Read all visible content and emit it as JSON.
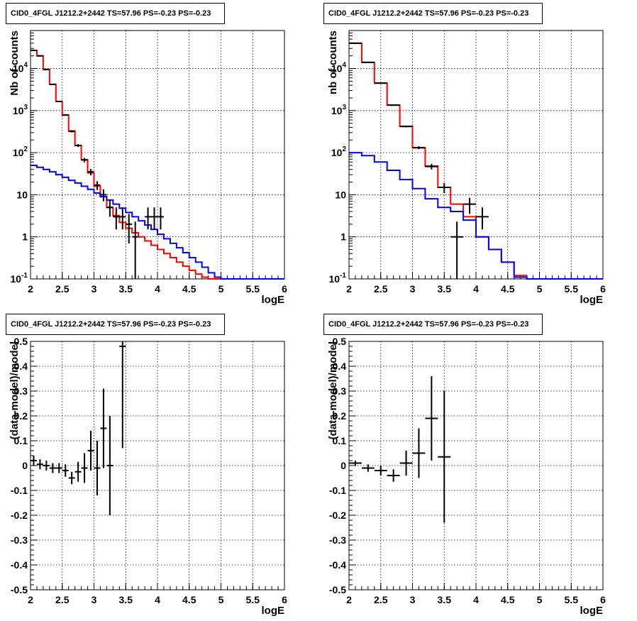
{
  "chart_data": [
    {
      "type": "step-histogram",
      "title": "CID0_4FGL J1212.2+2442 TS=57.96 PS=-0.23 PS=-0.23",
      "xlabel": "logE",
      "ylabel": "Nb of counts",
      "xlim": [
        2,
        6
      ],
      "ylim": [
        0.1,
        80000
      ],
      "yscale": "log",
      "grid": true,
      "xticks": [
        "2",
        "2.5",
        "3",
        "3.5",
        "4",
        "4.5",
        "5",
        "5.5",
        "6"
      ],
      "yticks": [
        "10^-1",
        "1",
        "10",
        "10^2",
        "10^3",
        "10^4"
      ],
      "bin_edges": [
        2,
        2.1,
        2.2,
        2.3,
        2.4,
        2.5,
        2.6,
        2.7,
        2.8,
        2.9,
        3,
        3.1,
        3.2,
        3.3,
        3.4,
        3.5,
        3.6,
        3.7,
        3.8,
        3.9,
        4,
        4.1,
        4.2,
        4.3,
        4.4,
        4.5,
        4.6,
        4.7,
        4.8,
        4.9,
        5,
        5.1,
        5.2,
        5.3,
        5.4,
        5.5,
        5.6,
        5.7,
        5.8,
        5.9,
        6
      ],
      "series": [
        {
          "color": "#ff0000",
          "values": [
            27000,
            20000,
            9500,
            4200,
            1650,
            780,
            330,
            148,
            68,
            33,
            16,
            9,
            5,
            3.2,
            2.2,
            1.6,
            1.25,
            1.0,
            0.8,
            0.63,
            0.5,
            0.4,
            0.32,
            0.25,
            0.2,
            0.16,
            0.13,
            0.11,
            0.1,
            0.1,
            0.1,
            0.1,
            0.1,
            0.1,
            0.1,
            0.1,
            0.1,
            0.1,
            0.1,
            0.1
          ]
        },
        {
          "color": "#0000ff",
          "values": [
            50,
            45,
            40,
            35,
            30,
            26,
            22,
            19,
            16,
            13.5,
            11,
            9,
            7.5,
            6,
            4.8,
            3.8,
            3,
            2.4,
            1.9,
            1.5,
            1.15,
            0.9,
            0.7,
            0.55,
            0.42,
            0.32,
            0.25,
            0.19,
            0.14,
            0.11,
            0.1,
            0.1,
            0.1,
            0.1,
            0.1,
            0.1,
            0.1,
            0.1,
            0.1,
            0.1
          ]
        }
      ],
      "data_points": [
        {
          "x": 2.05,
          "y": 27000,
          "ylo": 26700,
          "yhi": 27300
        },
        {
          "x": 2.15,
          "y": 20000,
          "ylo": 19700,
          "yhi": 20300
        },
        {
          "x": 2.25,
          "y": 9500,
          "ylo": 9300,
          "yhi": 9700
        },
        {
          "x": 2.35,
          "y": 4200,
          "ylo": 4100,
          "yhi": 4300
        },
        {
          "x": 2.45,
          "y": 1650,
          "ylo": 1610,
          "yhi": 1690
        },
        {
          "x": 2.55,
          "y": 790,
          "ylo": 760,
          "yhi": 820
        },
        {
          "x": 2.65,
          "y": 320,
          "ylo": 302,
          "yhi": 338
        },
        {
          "x": 2.75,
          "y": 148,
          "ylo": 136,
          "yhi": 160
        },
        {
          "x": 2.85,
          "y": 67,
          "ylo": 59,
          "yhi": 75
        },
        {
          "x": 2.95,
          "y": 35,
          "ylo": 29,
          "yhi": 41
        },
        {
          "x": 3.05,
          "y": 17,
          "ylo": 13,
          "yhi": 21
        },
        {
          "x": 3.15,
          "y": 10,
          "ylo": 7,
          "yhi": 13.5
        },
        {
          "x": 3.25,
          "y": 5,
          "ylo": 3,
          "yhi": 7.5
        },
        {
          "x": 3.35,
          "y": 3,
          "ylo": 1.5,
          "yhi": 5
        },
        {
          "x": 3.45,
          "y": 3,
          "ylo": 1.5,
          "yhi": 5
        },
        {
          "x": 3.55,
          "y": 2,
          "ylo": 0.7,
          "yhi": 3.5
        },
        {
          "x": 3.65,
          "y": 1,
          "ylo": 0.1,
          "yhi": 2.3
        },
        {
          "x": 3.85,
          "y": 3,
          "ylo": 1.5,
          "yhi": 5
        },
        {
          "x": 3.95,
          "y": 3,
          "ylo": 1.5,
          "yhi": 5
        },
        {
          "x": 4.05,
          "y": 3,
          "ylo": 1.5,
          "yhi": 5
        }
      ]
    },
    {
      "type": "step-histogram",
      "title": "CID0_4FGL J1212.2+2442 TS=57.96 PS=-0.23 PS=-0.23",
      "xlabel": "logE",
      "ylabel": "nb of counts",
      "xlim": [
        2,
        6
      ],
      "ylim": [
        0.1,
        80000
      ],
      "yscale": "log",
      "grid": true,
      "xticks": [
        "2",
        "2.5",
        "3",
        "3.5",
        "4",
        "4.5",
        "5",
        "5.5",
        "6"
      ],
      "yticks": [
        "10^-1",
        "1",
        "10",
        "10^2",
        "10^3",
        "10^4"
      ],
      "bin_edges": [
        2,
        2.2,
        2.4,
        2.6,
        2.8,
        3,
        3.2,
        3.4,
        3.6,
        3.8,
        4,
        4.2,
        4.4,
        4.6,
        4.8,
        5,
        5.2,
        5.4,
        5.6,
        5.8,
        6
      ],
      "series": [
        {
          "color": "#ff0000",
          "values": [
            40000,
            14000,
            4500,
            1350,
            420,
            130,
            48,
            15,
            6,
            3,
            1,
            0.5,
            0.25,
            0.12,
            0.1,
            0.1,
            0.1,
            0.1,
            0.1,
            0.1
          ]
        },
        {
          "color": "#0000ff",
          "values": [
            100,
            85,
            60,
            38,
            23,
            14,
            8,
            5,
            4,
            2.5,
            1,
            0.5,
            0.25,
            0.11,
            0.1,
            0.1,
            0.1,
            0.1,
            0.1,
            0.1
          ]
        }
      ],
      "data_points": [
        {
          "x": 2.1,
          "y": 40000,
          "ylo": 39700,
          "yhi": 40300
        },
        {
          "x": 2.3,
          "y": 14000,
          "ylo": 13800,
          "yhi": 14200
        },
        {
          "x": 2.5,
          "y": 4500,
          "ylo": 4400,
          "yhi": 4600
        },
        {
          "x": 2.7,
          "y": 1350,
          "ylo": 1310,
          "yhi": 1390
        },
        {
          "x": 2.9,
          "y": 420,
          "ylo": 400,
          "yhi": 440
        },
        {
          "x": 3.1,
          "y": 132,
          "ylo": 121,
          "yhi": 143
        },
        {
          "x": 3.3,
          "y": 47,
          "ylo": 40,
          "yhi": 54
        },
        {
          "x": 3.5,
          "y": 15,
          "ylo": 11,
          "yhi": 19
        },
        {
          "x": 3.7,
          "y": 1,
          "ylo": 0.1,
          "yhi": 2.3
        },
        {
          "x": 3.9,
          "y": 6,
          "ylo": 3.5,
          "yhi": 8.5
        },
        {
          "x": 4.1,
          "y": 3,
          "ylo": 1.5,
          "yhi": 5
        }
      ]
    },
    {
      "type": "error-bar",
      "title": "CID0_4FGL J1212.2+2442 TS=57.96 PS=-0.23 PS=-0.23",
      "xlabel": "logE",
      "ylabel": "(data-model)/model",
      "xlim": [
        2,
        6
      ],
      "ylim": [
        -0.5,
        0.5
      ],
      "grid": true,
      "xticks": [
        "2",
        "2.5",
        "3",
        "3.5",
        "4",
        "4.5",
        "5",
        "5.5",
        "6"
      ],
      "yticks": [
        "-0.5",
        "-0.4",
        "-0.3",
        "-0.2",
        "-0.1",
        "0",
        "0.1",
        "0.2",
        "0.3",
        "0.4",
        "0.5"
      ],
      "bin_width": 0.1,
      "data_points": [
        {
          "x": 2.05,
          "y": 0.02,
          "yerr": 0.02
        },
        {
          "x": 2.15,
          "y": 0.005,
          "yerr": 0.02
        },
        {
          "x": 2.25,
          "y": 0.0,
          "yerr": 0.02
        },
        {
          "x": 2.35,
          "y": -0.01,
          "yerr": 0.02
        },
        {
          "x": 2.45,
          "y": -0.01,
          "yerr": 0.02
        },
        {
          "x": 2.55,
          "y": -0.02,
          "yerr": 0.025
        },
        {
          "x": 2.65,
          "y": -0.05,
          "yerr": 0.025
        },
        {
          "x": 2.75,
          "y": -0.025,
          "yerr": 0.04
        },
        {
          "x": 2.85,
          "y": -0.01,
          "yerr": 0.06
        },
        {
          "x": 2.95,
          "y": 0.06,
          "yerr": 0.08
        },
        {
          "x": 3.05,
          "y": -0.01,
          "yerr": 0.11
        },
        {
          "x": 3.15,
          "y": 0.15,
          "yerr": 0.16
        },
        {
          "x": 3.25,
          "y": 0.0,
          "yerr": 0.2
        },
        {
          "x": 3.45,
          "y": 0.48,
          "yerr": 0.41
        }
      ]
    },
    {
      "type": "error-bar",
      "title": "CID0_4FGL J1212.2+2442 TS=57.96 PS=-0.23 PS=-0.23",
      "xlabel": "logE",
      "ylabel": "(data-model)/model",
      "xlim": [
        2,
        6
      ],
      "ylim": [
        -0.5,
        0.5
      ],
      "grid": true,
      "xticks": [
        "2",
        "2.5",
        "3",
        "3.5",
        "4",
        "4.5",
        "5",
        "5.5",
        "6"
      ],
      "yticks": [
        "-0.5",
        "-0.4",
        "-0.3",
        "-0.2",
        "-0.1",
        "0",
        "0.1",
        "0.2",
        "0.3",
        "0.4",
        "0.5"
      ],
      "bin_width": 0.2,
      "data_points": [
        {
          "x": 2.1,
          "y": 0.01,
          "yerr": 0.01
        },
        {
          "x": 2.3,
          "y": -0.01,
          "yerr": 0.015
        },
        {
          "x": 2.5,
          "y": -0.02,
          "yerr": 0.02
        },
        {
          "x": 2.7,
          "y": -0.04,
          "yerr": 0.025
        },
        {
          "x": 2.9,
          "y": 0.01,
          "yerr": 0.05
        },
        {
          "x": 3.1,
          "y": 0.05,
          "yerr": 0.1
        },
        {
          "x": 3.3,
          "y": 0.19,
          "yerr": 0.17
        },
        {
          "x": 3.5,
          "y": 0.035,
          "yerr": 0.265
        }
      ]
    }
  ]
}
